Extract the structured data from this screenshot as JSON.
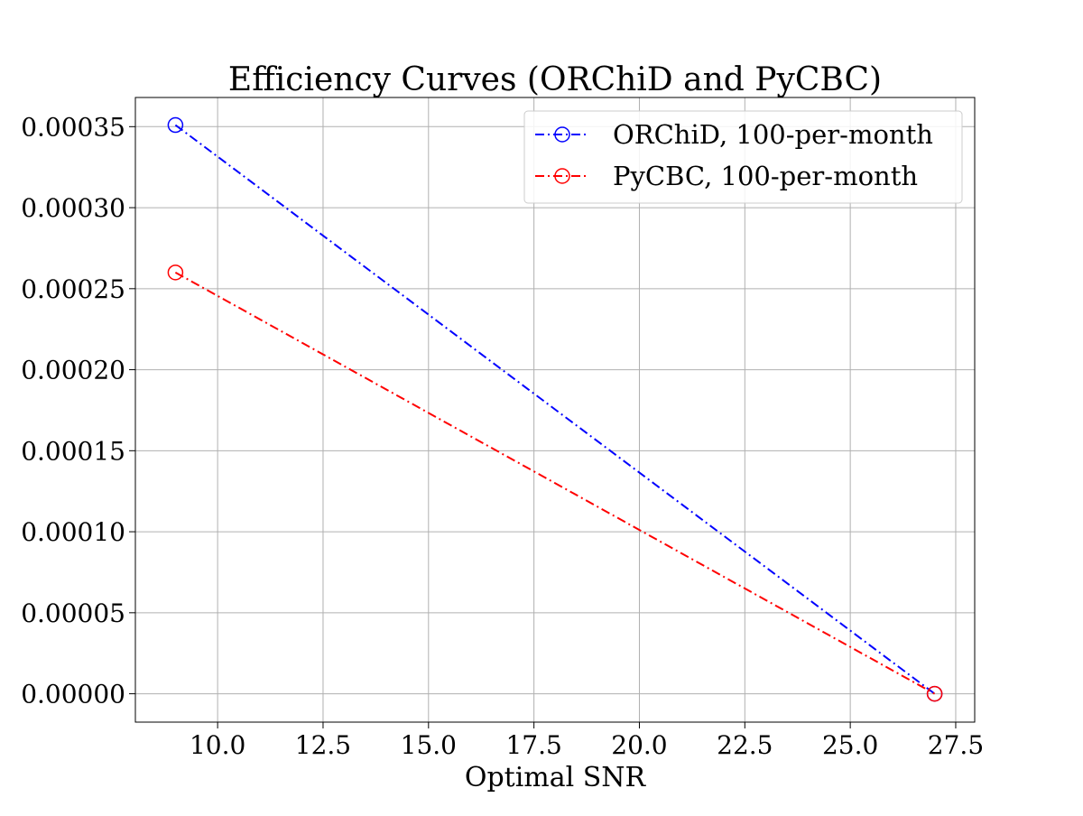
{
  "chart_data": {
    "type": "line",
    "title": "Efficiency Curves (ORChiD and PyCBC)",
    "xlabel": "Optimal SNR",
    "ylabel": "",
    "xlim": [
      8.05,
      27.95
    ],
    "ylim": [
      -1.75e-05,
      0.000368
    ],
    "grid": true,
    "legend_position": "top-right",
    "x_ticks": [
      10.0,
      12.5,
      15.0,
      17.5,
      20.0,
      22.5,
      25.0,
      27.5
    ],
    "x_tick_labels": [
      "10.0",
      "12.5",
      "15.0",
      "17.5",
      "20.0",
      "22.5",
      "25.0",
      "27.5"
    ],
    "y_ticks": [
      0.0,
      5e-05,
      0.0001,
      0.00015,
      0.0002,
      0.00025,
      0.0003,
      0.00035
    ],
    "y_tick_labels": [
      "0.00000",
      "0.00005",
      "0.00010",
      "0.00015",
      "0.00020",
      "0.00025",
      "0.00030",
      "0.00035"
    ],
    "series": [
      {
        "name": "ORChiD, 100-per-month",
        "color": "#0000ff",
        "line_style": "dash-dot",
        "marker": "open-circle",
        "x": [
          9.0,
          27.0
        ],
        "values": [
          0.000351,
          0.0
        ]
      },
      {
        "name": "PyCBC, 100-per-month",
        "color": "#ff0000",
        "line_style": "dash-dot",
        "marker": "open-circle",
        "x": [
          9.0,
          27.0
        ],
        "values": [
          0.00026,
          0.0
        ]
      }
    ]
  }
}
